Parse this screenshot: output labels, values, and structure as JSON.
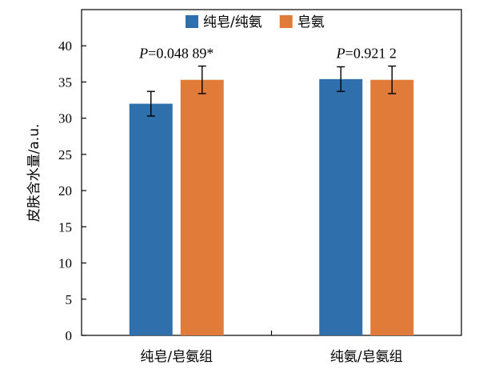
{
  "chart_data": {
    "type": "bar",
    "title": "",
    "xlabel": "",
    "ylabel": "皮肤含水量/a.u.",
    "ylim": [
      0,
      45
    ],
    "yticks": [
      0,
      5,
      10,
      15,
      20,
      25,
      30,
      35,
      40
    ],
    "ytick_labels": [
      "0",
      "5",
      "10",
      "15",
      "20",
      "25",
      "30",
      "35",
      "40"
    ],
    "categories": [
      "纯皂/皂氨组",
      "纯氨/皂氨组"
    ],
    "series": [
      {
        "name": "纯皂/纯氨",
        "color": "#2e6fac",
        "values": [
          32.0,
          35.4
        ],
        "errors": [
          1.7,
          1.7
        ]
      },
      {
        "name": "皂氨",
        "color": "#e07b39",
        "values": [
          35.3,
          35.3
        ],
        "errors": [
          1.9,
          1.9
        ]
      }
    ],
    "annotations": [
      {
        "category": "纯皂/皂氨组",
        "italic": "P",
        "text": "=0.048 89*"
      },
      {
        "category": "纯氨/皂氨组",
        "italic": "P",
        "text": "=0.921 2"
      }
    ],
    "legend": "top-center",
    "grid": false
  }
}
